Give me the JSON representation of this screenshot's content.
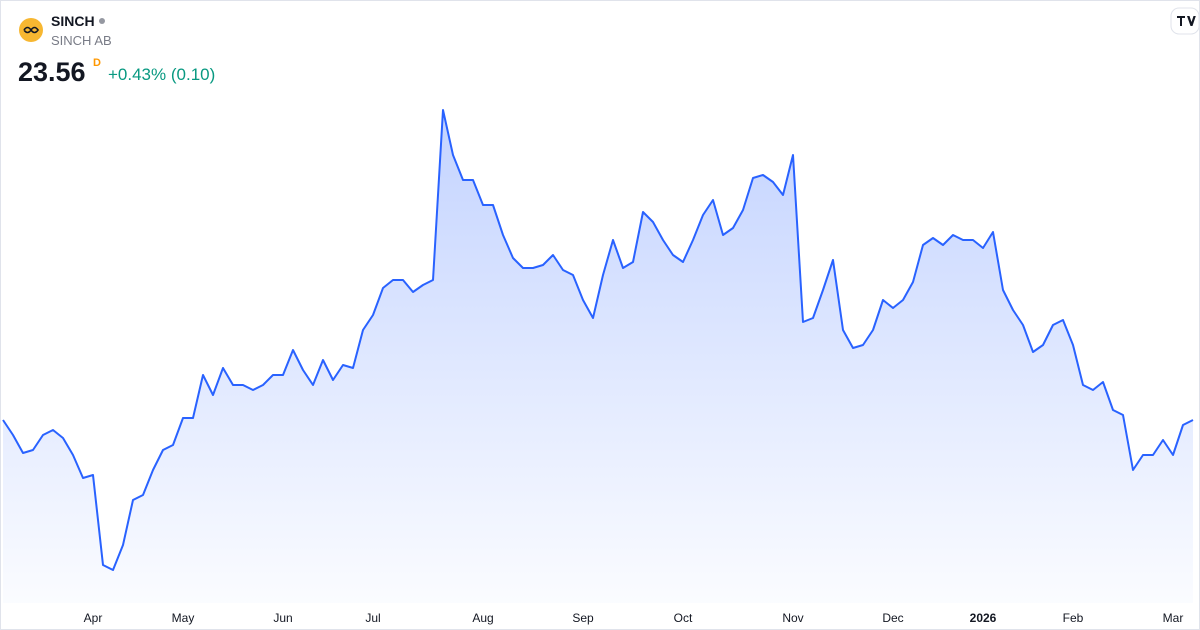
{
  "header": {
    "symbol": "SINCH",
    "name": "SINCH AB",
    "price": 23.56,
    "interval": "D",
    "change": "+0.43% (0.10)"
  },
  "chart_data": {
    "type": "area",
    "color": "#2962ff",
    "ylim": [
      15.16,
      40.36
    ],
    "categories": [
      null,
      null,
      null,
      null,
      null,
      null,
      null,
      null,
      null,
      "Apr",
      null,
      null,
      null,
      null,
      null,
      null,
      null,
      null,
      "May",
      null,
      null,
      null,
      null,
      null,
      null,
      null,
      null,
      null,
      "Jun",
      null,
      null,
      null,
      null,
      null,
      null,
      null,
      null,
      "Jul",
      null,
      null,
      null,
      null,
      null,
      null,
      null,
      null,
      null,
      null,
      "Aug",
      null,
      null,
      null,
      null,
      null,
      null,
      null,
      null,
      null,
      "Sep",
      null,
      null,
      null,
      null,
      null,
      null,
      null,
      null,
      null,
      "Oct",
      null,
      null,
      null,
      null,
      null,
      null,
      null,
      null,
      null,
      null,
      "Nov",
      null,
      null,
      null,
      null,
      null,
      null,
      null,
      null,
      null,
      "Dec",
      null,
      null,
      null,
      null,
      null,
      null,
      null,
      null,
      "2026",
      null,
      null,
      null,
      null,
      null,
      null,
      null,
      null,
      "Feb",
      null,
      null,
      null,
      null,
      null,
      null,
      null,
      null,
      null,
      "Mar",
      null,
      null
    ],
    "values": [
      23.56,
      22.96,
      22.24,
      22.36,
      22.96,
      23.16,
      22.84,
      22.16,
      21.24,
      21.36,
      17.76,
      17.56,
      18.56,
      20.36,
      20.56,
      21.56,
      22.36,
      22.56,
      23.64,
      23.64,
      25.36,
      24.56,
      25.64,
      24.96,
      24.96,
      24.76,
      24.96,
      25.36,
      25.36,
      26.36,
      25.56,
      24.96,
      25.96,
      25.16,
      25.76,
      25.64,
      27.16,
      27.76,
      28.84,
      29.16,
      29.16,
      28.68,
      28.96,
      29.16,
      35.96,
      34.16,
      33.16,
      33.16,
      32.16,
      32.16,
      30.96,
      30.04,
      29.64,
      29.64,
      29.76,
      30.16,
      29.56,
      29.36,
      28.36,
      27.64,
      29.36,
      30.76,
      29.64,
      29.88,
      31.88,
      31.48,
      30.76,
      30.16,
      29.88,
      30.76,
      31.76,
      32.36,
      30.96,
      31.24,
      31.96,
      33.24,
      33.36,
      33.08,
      32.56,
      34.16,
      27.48,
      27.64,
      28.76,
      29.96,
      27.16,
      26.44,
      26.56,
      27.16,
      28.36,
      28.04,
      28.36,
      29.08,
      30.56,
      30.84,
      30.56,
      30.96,
      30.76,
      30.76,
      30.44,
      31.08,
      28.76,
      27.96,
      27.36,
      26.28,
      26.56,
      27.36,
      27.56,
      26.56,
      24.96,
      24.76,
      25.08,
      23.96,
      23.76,
      21.56,
      22.16,
      22.16,
      22.76,
      22.16,
      23.36,
      23.56
    ]
  }
}
